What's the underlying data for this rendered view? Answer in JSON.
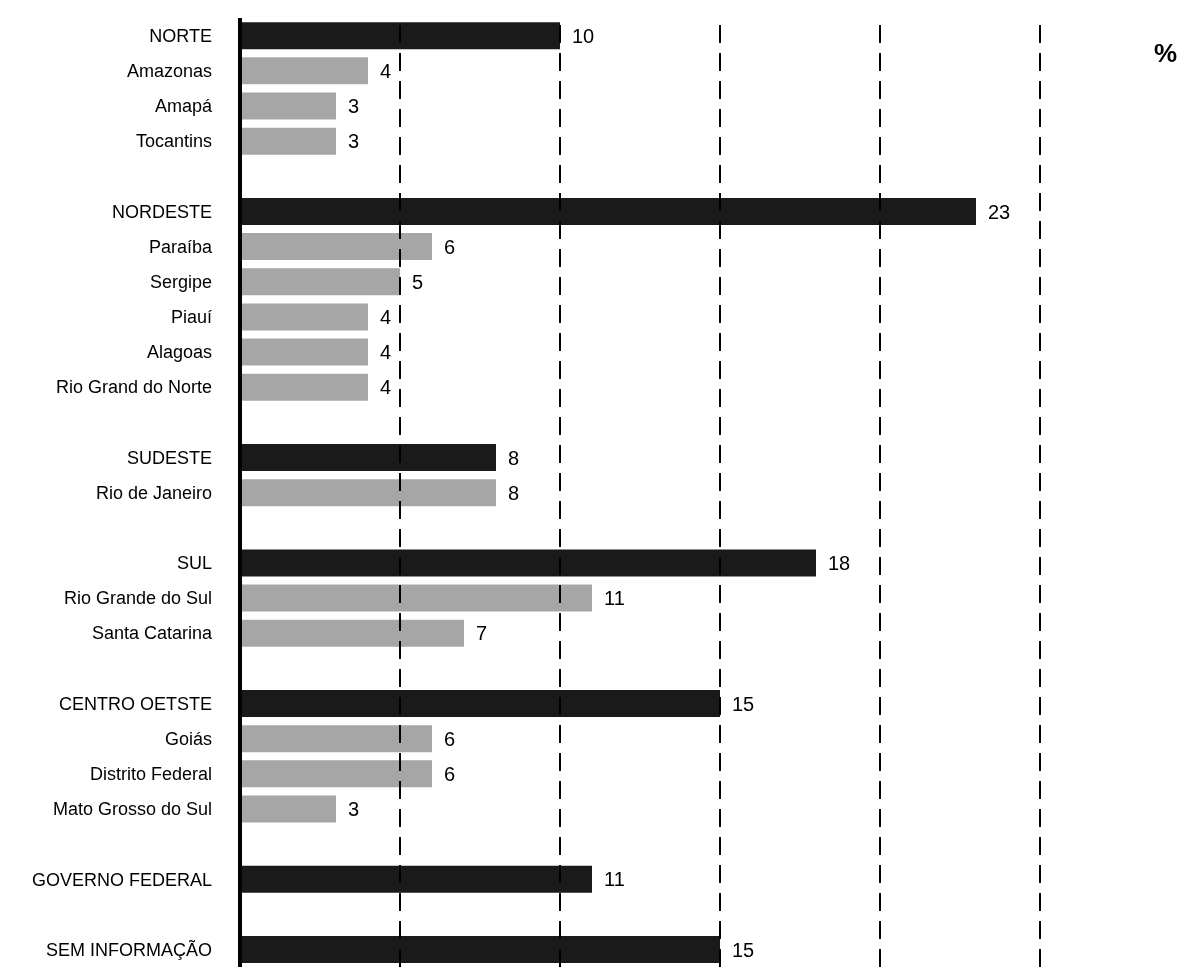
{
  "chart_data": {
    "type": "bar",
    "orientation": "horizontal",
    "categories": [
      "NORTE",
      "Amazonas",
      "Amapá",
      "Tocantins",
      null,
      "NORDESTE",
      "Paraíba",
      "Sergipe",
      "Piauí",
      "Alagoas",
      "Rio Grand do Norte",
      null,
      "SUDESTE",
      "Rio de Janeiro",
      null,
      "SUL",
      "Rio Grande do Sul",
      "Santa Catarina",
      null,
      "CENTRO OETSTE",
      "Goiás",
      "Distrito Federal",
      "Mato Grosso do Sul",
      null,
      "GOVERNO FEDERAL",
      null,
      "SEM INFORMAÇÃO"
    ],
    "values": [
      10,
      4,
      3,
      3,
      null,
      23,
      6,
      5,
      4,
      4,
      4,
      null,
      8,
      8,
      null,
      18,
      11,
      7,
      null,
      15,
      6,
      6,
      3,
      null,
      11,
      null,
      15
    ],
    "colors": [
      "#1a1a1a",
      "#a6a6a6",
      "#a6a6a6",
      "#a6a6a6",
      "#ffffff",
      "#1a1a1a",
      "#a6a6a6",
      "#a6a6a6",
      "#a6a6a6",
      "#a6a6a6",
      "#a6a6a6",
      "#ffffff",
      "#1a1a1a",
      "#a6a6a6",
      "#ffffff",
      "#1a1a1a",
      "#a6a6a6",
      "#a6a6a6",
      "#ffffff",
      "#1a1a1a",
      "#a6a6a6",
      "#a6a6a6",
      "#a6a6a6",
      "#ffffff",
      "#1a1a1a",
      "#ffffff",
      "#1a1a1a"
    ],
    "xlim": [
      0,
      25
    ],
    "xticks": [
      {
        "value": 5,
        "label": null
      },
      {
        "value": 10,
        "label": null
      },
      {
        "value": 15,
        "label": null
      },
      {
        "value": 20,
        "label": null
      },
      {
        "value": 25,
        "label": null
      }
    ],
    "grid": "x",
    "tick_labels": "y",
    "data_labels": true,
    "annotations": [
      "%"
    ]
  }
}
